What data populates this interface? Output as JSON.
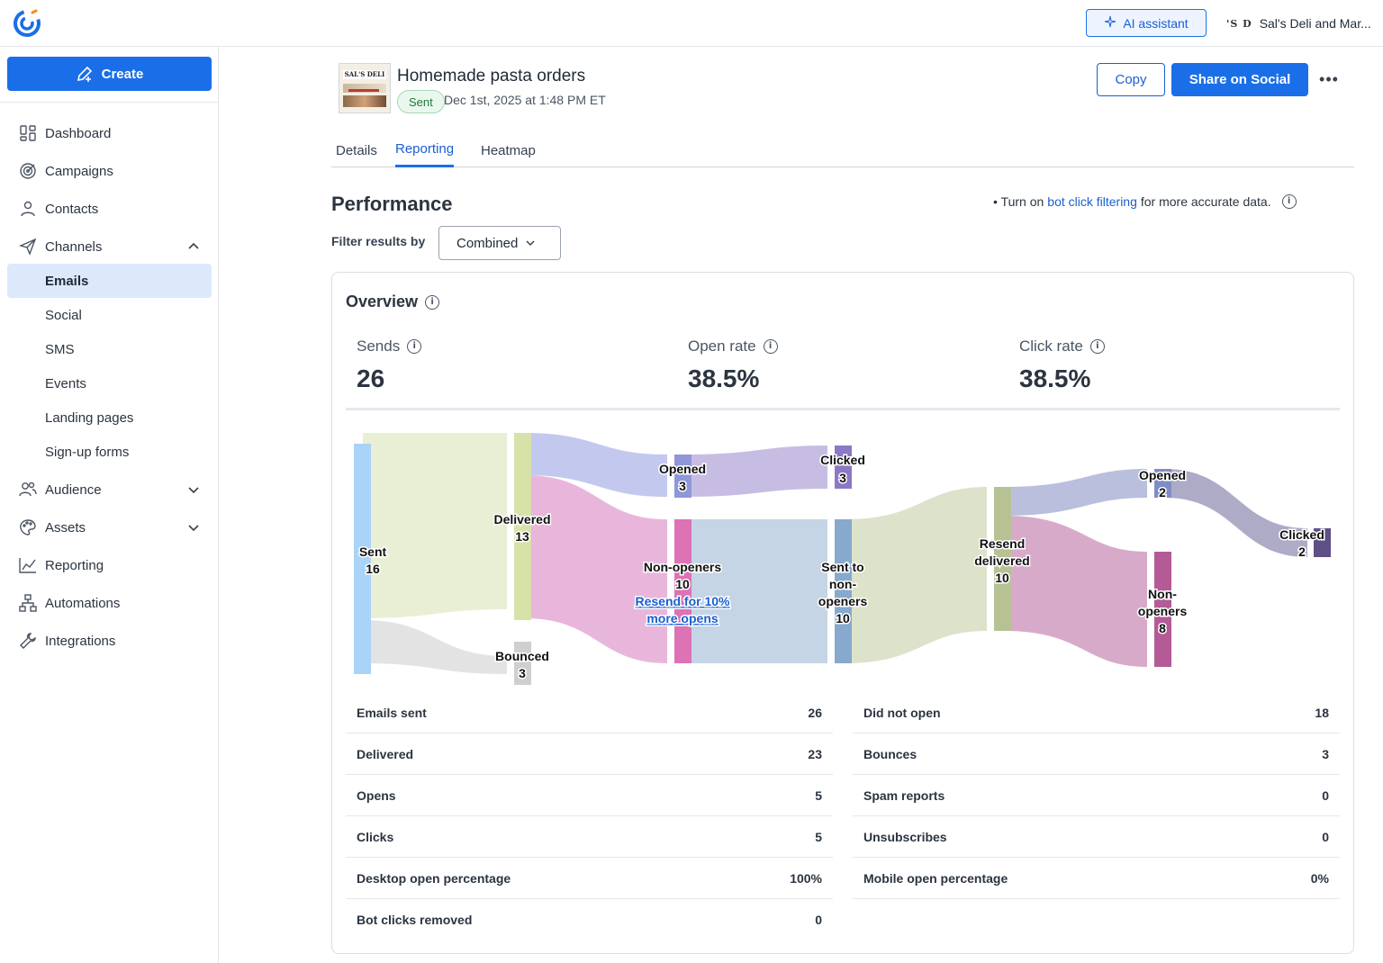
{
  "header": {
    "ai_assistant_label": "AI assistant",
    "account_logo_text": "'S D",
    "account_name": "Sal's Deli and Mar..."
  },
  "sidebar": {
    "create_label": "Create",
    "items": [
      {
        "label": "Dashboard",
        "icon": "dashboard-icon"
      },
      {
        "label": "Campaigns",
        "icon": "campaigns-icon"
      },
      {
        "label": "Contacts",
        "icon": "contacts-icon"
      },
      {
        "label": "Channels",
        "icon": "send-icon",
        "expanded": true
      },
      {
        "label": "Audience",
        "icon": "audience-icon",
        "expanded": false
      },
      {
        "label": "Assets",
        "icon": "palette-icon",
        "expanded": false
      },
      {
        "label": "Reporting",
        "icon": "reporting-icon"
      },
      {
        "label": "Automations",
        "icon": "automations-icon"
      },
      {
        "label": "Integrations",
        "icon": "wrench-icon"
      }
    ],
    "channels_sub": [
      "Emails",
      "Social",
      "SMS",
      "Events",
      "Landing pages",
      "Sign-up forms"
    ],
    "active_sub": "Emails"
  },
  "campaign": {
    "thumbnail_text": "SAL'S DELI",
    "title": "Homemade pasta orders",
    "status": "Sent",
    "sent_date": "Dec 1st, 2025 at 1:48 PM ET",
    "copy_label": "Copy",
    "share_label": "Share on Social",
    "more_label": "•••"
  },
  "tabs": [
    {
      "label": "Details",
      "active": false
    },
    {
      "label": "Reporting",
      "active": true
    },
    {
      "label": "Heatmap",
      "active": false
    }
  ],
  "performance": {
    "title": "Performance",
    "bot_note_prefix": "• Turn on ",
    "bot_note_link": "bot click filtering",
    "bot_note_suffix": " for more accurate data.",
    "filter_label": "Filter results by",
    "filter_value": "Combined"
  },
  "overview": {
    "title": "Overview",
    "kpis": [
      {
        "label": "Sends",
        "value": "26"
      },
      {
        "label": "Open rate",
        "value": "38.5%"
      },
      {
        "label": "Click rate",
        "value": "38.5%"
      }
    ]
  },
  "sankey": {
    "nodes": {
      "sent": {
        "label": "Sent",
        "value": "16",
        "color": "#a9d3f7"
      },
      "delivered": {
        "label": "Delivered",
        "value": "13",
        "color": "#d7e2a9"
      },
      "bounced": {
        "label": "Bounced",
        "value": "3",
        "color": "#cfcfcf"
      },
      "opened1": {
        "label": "Opened",
        "value": "3",
        "color": "#8f97d9"
      },
      "clicked1": {
        "label": "Clicked",
        "value": "3",
        "color": "#8c78c4"
      },
      "nonopeners1": {
        "label": "Non-openers",
        "value": "10",
        "color": "#dd72b5"
      },
      "sent_non": {
        "label": "Sent to non-openers",
        "value": "10",
        "color": "#86a9cd"
      },
      "resend_del": {
        "label": "Resend delivered",
        "value": "10",
        "color": "#b6c294"
      },
      "opened2": {
        "label": "Opened",
        "value": "2",
        "color": "#7f8dc7"
      },
      "clicked2": {
        "label": "Clicked",
        "value": "2",
        "color": "#5e4f86"
      },
      "nonopeners2": {
        "label": "Non-openers",
        "value": "8",
        "color": "#b45a97"
      }
    },
    "resend_link": "Resend for 10% more opens"
  },
  "stats_left": [
    {
      "label": "Emails sent",
      "value": "26"
    },
    {
      "label": "Delivered",
      "value": "23"
    },
    {
      "label": "Opens",
      "value": "5"
    },
    {
      "label": "Clicks",
      "value": "5"
    },
    {
      "label": "Desktop open percentage",
      "value": "100%"
    },
    {
      "label": "Bot clicks removed",
      "value": "0"
    }
  ],
  "stats_right": [
    {
      "label": "Did not open",
      "value": "18"
    },
    {
      "label": "Bounces",
      "value": "3"
    },
    {
      "label": "Spam reports",
      "value": "0"
    },
    {
      "label": "Unsubscribes",
      "value": "0"
    },
    {
      "label": "Mobile open percentage",
      "value": "0%"
    }
  ]
}
